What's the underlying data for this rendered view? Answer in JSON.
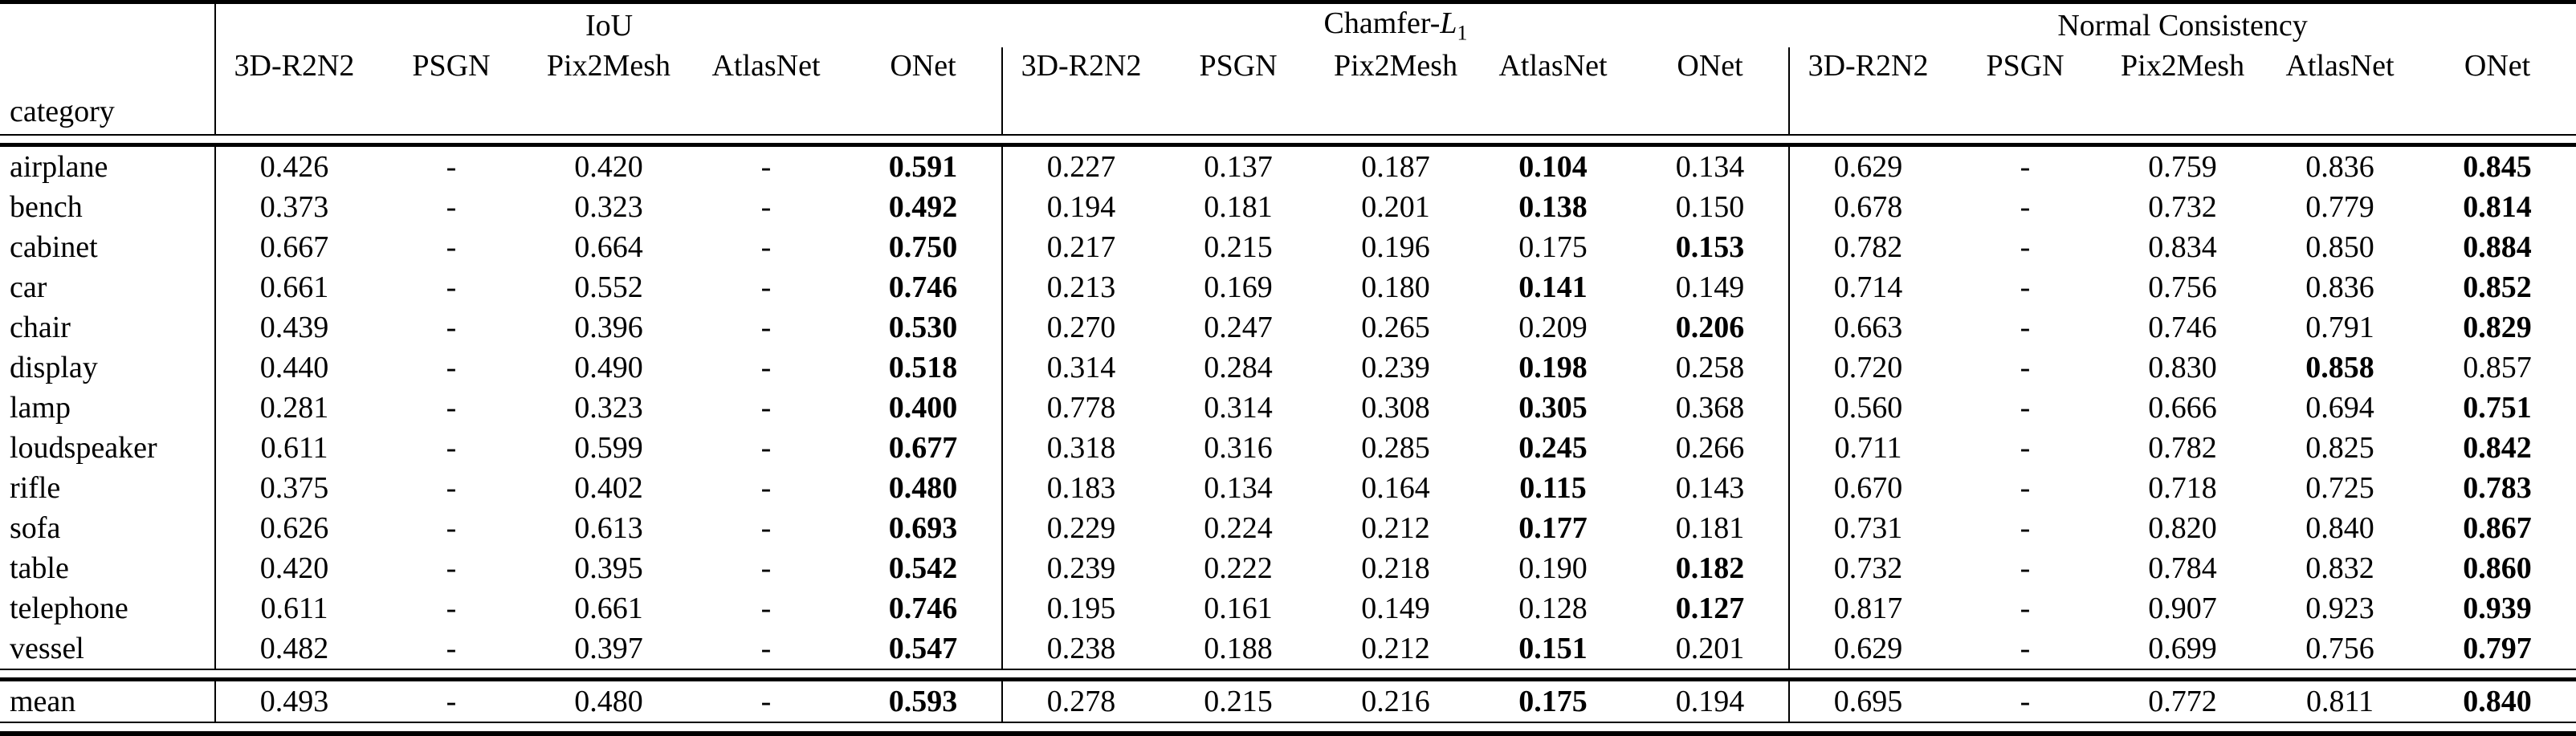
{
  "table": {
    "row_header_label": "category",
    "line_color": "#000000",
    "groups": [
      {
        "title_text": "IoU"
      },
      {
        "title_prefix": "Chamfer-",
        "title_math": "L",
        "title_sub": "1"
      },
      {
        "title_text": "Normal Consistency"
      }
    ],
    "methods": [
      "3D-R2N2",
      "PSGN",
      "Pix2Mesh",
      "AtlasNet",
      "ONet"
    ],
    "rows": [
      {
        "category": "airplane",
        "iou": [
          {
            "v": "0.426"
          },
          {
            "v": "-"
          },
          {
            "v": "0.420"
          },
          {
            "v": "-"
          },
          {
            "v": "0.591",
            "b": 1
          }
        ],
        "chamfer": [
          {
            "v": "0.227"
          },
          {
            "v": "0.137"
          },
          {
            "v": "0.187"
          },
          {
            "v": "0.104",
            "b": 1
          },
          {
            "v": "0.134"
          }
        ],
        "normal": [
          {
            "v": "0.629"
          },
          {
            "v": "-"
          },
          {
            "v": "0.759"
          },
          {
            "v": "0.836"
          },
          {
            "v": "0.845",
            "b": 1
          }
        ]
      },
      {
        "category": "bench",
        "iou": [
          {
            "v": "0.373"
          },
          {
            "v": "-"
          },
          {
            "v": "0.323"
          },
          {
            "v": "-"
          },
          {
            "v": "0.492",
            "b": 1
          }
        ],
        "chamfer": [
          {
            "v": "0.194"
          },
          {
            "v": "0.181"
          },
          {
            "v": "0.201"
          },
          {
            "v": "0.138",
            "b": 1
          },
          {
            "v": "0.150"
          }
        ],
        "normal": [
          {
            "v": "0.678"
          },
          {
            "v": "-"
          },
          {
            "v": "0.732"
          },
          {
            "v": "0.779"
          },
          {
            "v": "0.814",
            "b": 1
          }
        ]
      },
      {
        "category": "cabinet",
        "iou": [
          {
            "v": "0.667"
          },
          {
            "v": "-"
          },
          {
            "v": "0.664"
          },
          {
            "v": "-"
          },
          {
            "v": "0.750",
            "b": 1
          }
        ],
        "chamfer": [
          {
            "v": "0.217"
          },
          {
            "v": "0.215"
          },
          {
            "v": "0.196"
          },
          {
            "v": "0.175"
          },
          {
            "v": "0.153",
            "b": 1
          }
        ],
        "normal": [
          {
            "v": "0.782"
          },
          {
            "v": "-"
          },
          {
            "v": "0.834"
          },
          {
            "v": "0.850"
          },
          {
            "v": "0.884",
            "b": 1
          }
        ]
      },
      {
        "category": "car",
        "iou": [
          {
            "v": "0.661"
          },
          {
            "v": "-"
          },
          {
            "v": "0.552"
          },
          {
            "v": "-"
          },
          {
            "v": "0.746",
            "b": 1
          }
        ],
        "chamfer": [
          {
            "v": "0.213"
          },
          {
            "v": "0.169"
          },
          {
            "v": "0.180"
          },
          {
            "v": "0.141",
            "b": 1
          },
          {
            "v": "0.149"
          }
        ],
        "normal": [
          {
            "v": "0.714"
          },
          {
            "v": "-"
          },
          {
            "v": "0.756"
          },
          {
            "v": "0.836"
          },
          {
            "v": "0.852",
            "b": 1
          }
        ]
      },
      {
        "category": "chair",
        "iou": [
          {
            "v": "0.439"
          },
          {
            "v": "-"
          },
          {
            "v": "0.396"
          },
          {
            "v": "-"
          },
          {
            "v": "0.530",
            "b": 1
          }
        ],
        "chamfer": [
          {
            "v": "0.270"
          },
          {
            "v": "0.247"
          },
          {
            "v": "0.265"
          },
          {
            "v": "0.209"
          },
          {
            "v": "0.206",
            "b": 1
          }
        ],
        "normal": [
          {
            "v": "0.663"
          },
          {
            "v": "-"
          },
          {
            "v": "0.746"
          },
          {
            "v": "0.791"
          },
          {
            "v": "0.829",
            "b": 1
          }
        ]
      },
      {
        "category": "display",
        "iou": [
          {
            "v": "0.440"
          },
          {
            "v": "-"
          },
          {
            "v": "0.490"
          },
          {
            "v": "-"
          },
          {
            "v": "0.518",
            "b": 1
          }
        ],
        "chamfer": [
          {
            "v": "0.314"
          },
          {
            "v": "0.284"
          },
          {
            "v": "0.239"
          },
          {
            "v": "0.198",
            "b": 1
          },
          {
            "v": "0.258"
          }
        ],
        "normal": [
          {
            "v": "0.720"
          },
          {
            "v": "-"
          },
          {
            "v": "0.830"
          },
          {
            "v": "0.858",
            "b": 1
          },
          {
            "v": "0.857"
          }
        ]
      },
      {
        "category": "lamp",
        "iou": [
          {
            "v": "0.281"
          },
          {
            "v": "-"
          },
          {
            "v": "0.323"
          },
          {
            "v": "-"
          },
          {
            "v": "0.400",
            "b": 1
          }
        ],
        "chamfer": [
          {
            "v": "0.778"
          },
          {
            "v": "0.314"
          },
          {
            "v": "0.308"
          },
          {
            "v": "0.305",
            "b": 1
          },
          {
            "v": "0.368"
          }
        ],
        "normal": [
          {
            "v": "0.560"
          },
          {
            "v": "-"
          },
          {
            "v": "0.666"
          },
          {
            "v": "0.694"
          },
          {
            "v": "0.751",
            "b": 1
          }
        ]
      },
      {
        "category": "loudspeaker",
        "iou": [
          {
            "v": "0.611"
          },
          {
            "v": "-"
          },
          {
            "v": "0.599"
          },
          {
            "v": "-"
          },
          {
            "v": "0.677",
            "b": 1
          }
        ],
        "chamfer": [
          {
            "v": "0.318"
          },
          {
            "v": "0.316"
          },
          {
            "v": "0.285"
          },
          {
            "v": "0.245",
            "b": 1
          },
          {
            "v": "0.266"
          }
        ],
        "normal": [
          {
            "v": "0.711"
          },
          {
            "v": "-"
          },
          {
            "v": "0.782"
          },
          {
            "v": "0.825"
          },
          {
            "v": "0.842",
            "b": 1
          }
        ]
      },
      {
        "category": "rifle",
        "iou": [
          {
            "v": "0.375"
          },
          {
            "v": "-"
          },
          {
            "v": "0.402"
          },
          {
            "v": "-"
          },
          {
            "v": "0.480",
            "b": 1
          }
        ],
        "chamfer": [
          {
            "v": "0.183"
          },
          {
            "v": "0.134"
          },
          {
            "v": "0.164"
          },
          {
            "v": "0.115",
            "b": 1
          },
          {
            "v": "0.143"
          }
        ],
        "normal": [
          {
            "v": "0.670"
          },
          {
            "v": "-"
          },
          {
            "v": "0.718"
          },
          {
            "v": "0.725"
          },
          {
            "v": "0.783",
            "b": 1
          }
        ]
      },
      {
        "category": "sofa",
        "iou": [
          {
            "v": "0.626"
          },
          {
            "v": "-"
          },
          {
            "v": "0.613"
          },
          {
            "v": "-"
          },
          {
            "v": "0.693",
            "b": 1
          }
        ],
        "chamfer": [
          {
            "v": "0.229"
          },
          {
            "v": "0.224"
          },
          {
            "v": "0.212"
          },
          {
            "v": "0.177",
            "b": 1
          },
          {
            "v": "0.181"
          }
        ],
        "normal": [
          {
            "v": "0.731"
          },
          {
            "v": "-"
          },
          {
            "v": "0.820"
          },
          {
            "v": "0.840"
          },
          {
            "v": "0.867",
            "b": 1
          }
        ]
      },
      {
        "category": "table",
        "iou": [
          {
            "v": "0.420"
          },
          {
            "v": "-"
          },
          {
            "v": "0.395"
          },
          {
            "v": "-"
          },
          {
            "v": "0.542",
            "b": 1
          }
        ],
        "chamfer": [
          {
            "v": "0.239"
          },
          {
            "v": "0.222"
          },
          {
            "v": "0.218"
          },
          {
            "v": "0.190"
          },
          {
            "v": "0.182",
            "b": 1
          }
        ],
        "normal": [
          {
            "v": "0.732"
          },
          {
            "v": "-"
          },
          {
            "v": "0.784"
          },
          {
            "v": "0.832"
          },
          {
            "v": "0.860",
            "b": 1
          }
        ]
      },
      {
        "category": "telephone",
        "iou": [
          {
            "v": "0.611"
          },
          {
            "v": "-"
          },
          {
            "v": "0.661"
          },
          {
            "v": "-"
          },
          {
            "v": "0.746",
            "b": 1
          }
        ],
        "chamfer": [
          {
            "v": "0.195"
          },
          {
            "v": "0.161"
          },
          {
            "v": "0.149"
          },
          {
            "v": "0.128"
          },
          {
            "v": "0.127",
            "b": 1
          }
        ],
        "normal": [
          {
            "v": "0.817"
          },
          {
            "v": "-"
          },
          {
            "v": "0.907"
          },
          {
            "v": "0.923"
          },
          {
            "v": "0.939",
            "b": 1
          }
        ]
      },
      {
        "category": "vessel",
        "iou": [
          {
            "v": "0.482"
          },
          {
            "v": "-"
          },
          {
            "v": "0.397"
          },
          {
            "v": "-"
          },
          {
            "v": "0.547",
            "b": 1
          }
        ],
        "chamfer": [
          {
            "v": "0.238"
          },
          {
            "v": "0.188"
          },
          {
            "v": "0.212"
          },
          {
            "v": "0.151",
            "b": 1
          },
          {
            "v": "0.201"
          }
        ],
        "normal": [
          {
            "v": "0.629"
          },
          {
            "v": "-"
          },
          {
            "v": "0.699"
          },
          {
            "v": "0.756"
          },
          {
            "v": "0.797",
            "b": 1
          }
        ]
      }
    ],
    "mean_row": {
      "category": "mean",
      "iou": [
        {
          "v": "0.493"
        },
        {
          "v": "-"
        },
        {
          "v": "0.480"
        },
        {
          "v": "-"
        },
        {
          "v": "0.593",
          "b": 1
        }
      ],
      "chamfer": [
        {
          "v": "0.278"
        },
        {
          "v": "0.215"
        },
        {
          "v": "0.216"
        },
        {
          "v": "0.175",
          "b": 1
        },
        {
          "v": "0.194"
        }
      ],
      "normal": [
        {
          "v": "0.695"
        },
        {
          "v": "-"
        },
        {
          "v": "0.772"
        },
        {
          "v": "0.811"
        },
        {
          "v": "0.840",
          "b": 1
        }
      ]
    }
  }
}
